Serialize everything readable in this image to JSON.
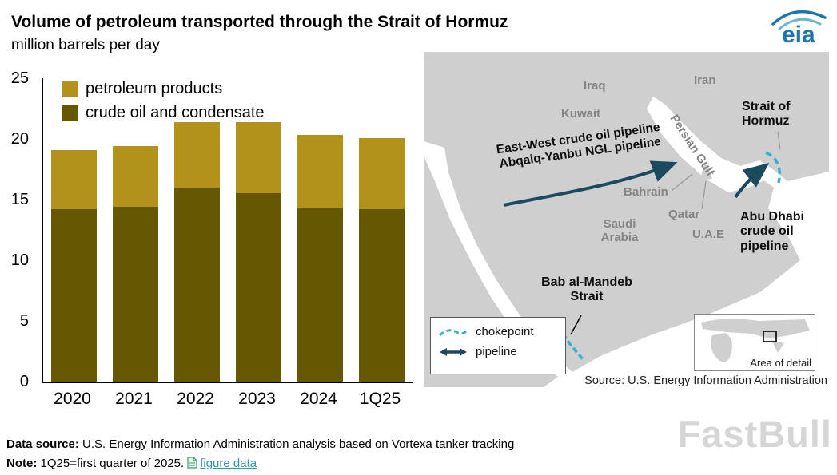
{
  "header": {
    "title": "Volume of petroleum transported through the Strait of Hormuz",
    "subtitle": "million barrels per day",
    "logo_text": "eia"
  },
  "chart_data": {
    "type": "bar",
    "stacked": true,
    "title": "Volume of petroleum transported through the Strait of Hormuz",
    "units": "million barrels per day",
    "categories": [
      "2020",
      "2021",
      "2022",
      "2023",
      "2024",
      "1Q25"
    ],
    "series": [
      {
        "name": "crude oil and condensate",
        "color": "#665703",
        "values": [
          14.2,
          14.4,
          16.0,
          15.5,
          14.3,
          14.2
        ]
      },
      {
        "name": "petroleum products",
        "color": "#b3921b",
        "values": [
          4.9,
          5.0,
          5.4,
          5.9,
          6.0,
          5.9
        ]
      }
    ],
    "ylim": [
      0,
      25
    ],
    "yticks": [
      0,
      5,
      10,
      15,
      20,
      25
    ],
    "legend_position": "top-left",
    "grid": false
  },
  "map": {
    "labels": {
      "iraq": "Iraq",
      "iran": "Iran",
      "kuwait": "Kuwait",
      "persian_gulf": "Persian Gulf",
      "bahrain": "Bahrain",
      "qatar": "Qatar",
      "uae": "U.A.E",
      "saudi_arabia": "Saudi Arabia",
      "strait_of_hormuz": "Strait of Hormuz",
      "abu_dhabi_pipeline": "Abu Dhabi crude oil pipeline",
      "bab_al_mandeb": "Bab al-Mandeb Strait",
      "east_west_line1": "East-West crude oil pipeline",
      "east_west_line2": "Abqaiq-Yanbu NGL pipeline"
    },
    "legend": {
      "chokepoint": "chokepoint",
      "pipeline": "pipeline"
    },
    "area_of_detail": "Area of detail",
    "source": "Source: U.S. Energy Information Administration"
  },
  "footer": {
    "data_source_label": "Data source:",
    "data_source_text": " U.S. Energy Information Administration analysis based on Vortexa tanker tracking",
    "note_label": "Note:",
    "note_text": " 1Q25=first quarter of 2025.",
    "figure_data_link": "figure data",
    "watermark": "FastBull"
  },
  "colors": {
    "crude": "#665703",
    "products": "#b3921b",
    "land": "#cfcfcf",
    "chokepoint": "#35b4c9",
    "pipeline": "#1b4a5e",
    "eia_blue": "#2076a8",
    "link_teal": "#2a9d9f"
  }
}
